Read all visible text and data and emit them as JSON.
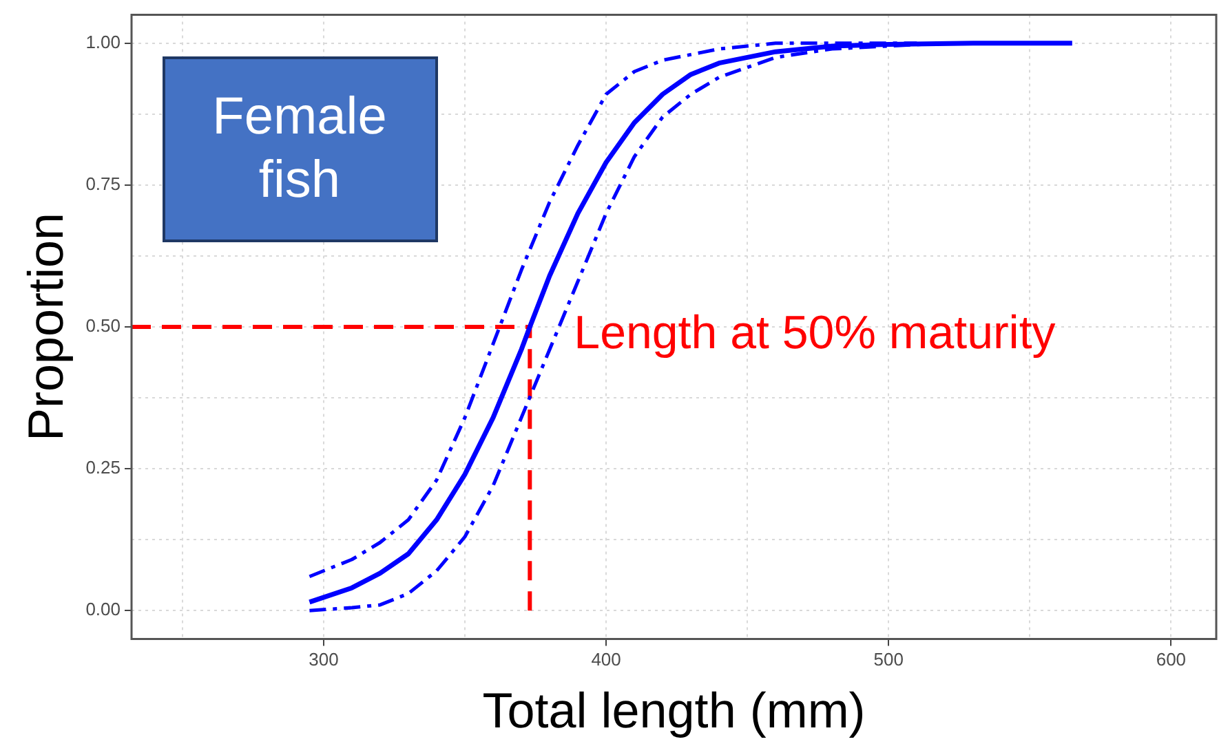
{
  "chart_data": {
    "type": "line",
    "xlabel": "Total length (mm)",
    "ylabel": "Proportion",
    "xlim": [
      232,
      616
    ],
    "ylim": [
      -0.05,
      1.05
    ],
    "xticks": [
      {
        "value": 250,
        "label": null
      },
      300,
      {
        "value": 350,
        "label": null
      },
      400,
      {
        "value": 450,
        "label": null
      },
      500,
      {
        "value": 550,
        "label": null
      },
      600
    ],
    "yticks": [
      {
        "value": 0,
        "label": "0.00"
      },
      {
        "value": 0.125,
        "label": null
      },
      {
        "value": 0.25,
        "label": "0.25"
      },
      {
        "value": 0.375,
        "label": null
      },
      {
        "value": 0.5,
        "label": "0.50"
      },
      {
        "value": 0.625,
        "label": null
      },
      {
        "value": 0.75,
        "label": "0.75"
      },
      {
        "value": 0.875,
        "label": null
      },
      {
        "value": 1,
        "label": "1.00"
      }
    ],
    "grid": true,
    "legend": false,
    "marker": "none",
    "series": [
      {
        "color": "#0000ff",
        "line_style": "solid",
        "x": [
          295,
          310,
          320,
          330,
          340,
          350,
          360,
          370,
          373,
          380,
          390,
          400,
          410,
          420,
          430,
          440,
          460,
          480,
          500,
          530,
          565
        ],
        "values": [
          0.015,
          0.04,
          0.066,
          0.1,
          0.16,
          0.24,
          0.34,
          0.46,
          0.5,
          0.59,
          0.7,
          0.79,
          0.86,
          0.91,
          0.945,
          0.965,
          0.985,
          0.995,
          0.998,
          1.0,
          1.0
        ]
      },
      {
        "color": "#0000ff",
        "line_style": "dashed",
        "x": [
          295,
          310,
          320,
          330,
          340,
          350,
          360,
          370,
          380,
          390,
          400,
          410,
          420,
          440,
          460,
          510
        ],
        "values": [
          0.06,
          0.09,
          0.12,
          0.16,
          0.23,
          0.34,
          0.47,
          0.6,
          0.72,
          0.82,
          0.91,
          0.95,
          0.97,
          0.99,
          1.0,
          1.0
        ]
      },
      {
        "color": "#0000ff",
        "line_style": "dashed",
        "x": [
          295,
          310,
          320,
          330,
          340,
          350,
          360,
          370,
          380,
          390,
          400,
          410,
          420,
          430,
          440,
          460,
          480,
          520
        ],
        "values": [
          0.0,
          0.005,
          0.01,
          0.03,
          0.07,
          0.13,
          0.22,
          0.34,
          0.46,
          0.58,
          0.7,
          0.8,
          0.87,
          0.91,
          0.94,
          0.975,
          0.99,
          1.0
        ]
      }
    ],
    "ref_lines": [
      {
        "axis": "y",
        "value": 0.5,
        "color": "#ff0000",
        "line_style": "dashed"
      },
      {
        "axis": "x",
        "value": 373,
        "color": "#ff0000",
        "line_style": "dashed"
      }
    ],
    "annotations": [
      "Female fish",
      {
        "text": "Length at 50% maturity",
        "x": 373,
        "y": 0.5
      }
    ]
  }
}
